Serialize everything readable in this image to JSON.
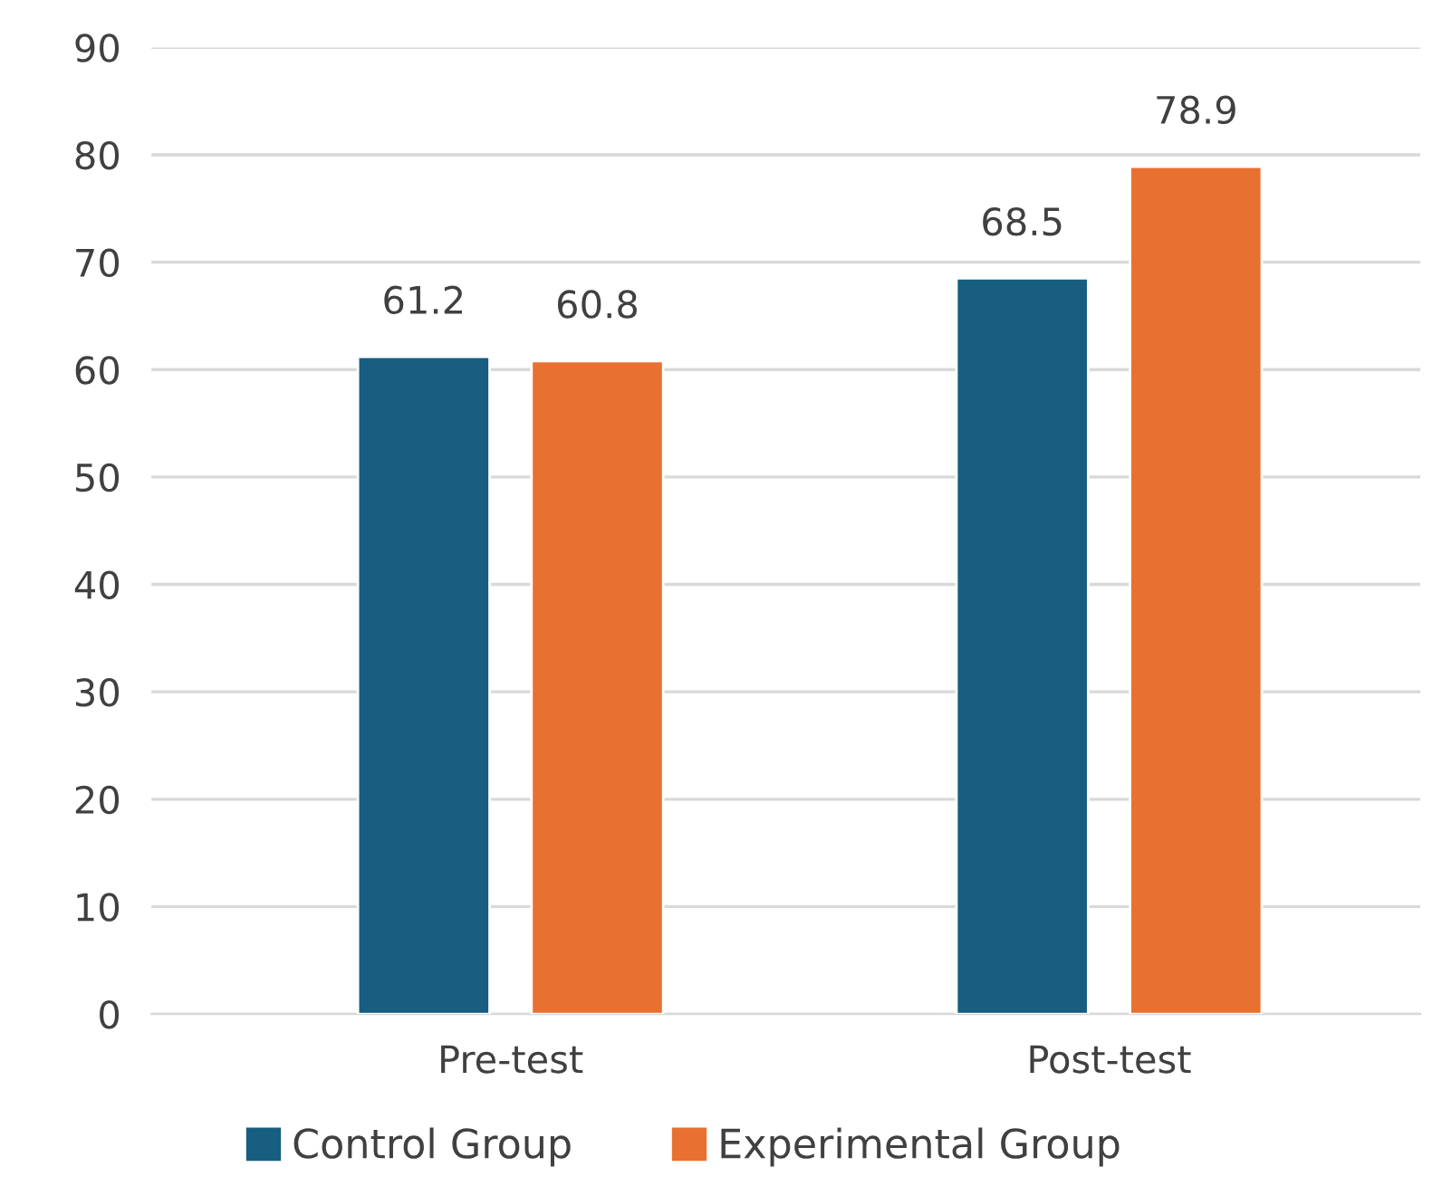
{
  "chart_data": {
    "type": "bar",
    "categories": [
      "Pre-test",
      "Post-test"
    ],
    "series": [
      {
        "name": "Control Group",
        "color": "#175e80",
        "values": [
          61.2,
          68.5
        ]
      },
      {
        "name": "Experimental Group",
        "color": "#e87131",
        "values": [
          60.8,
          78.9
        ]
      }
    ],
    "ylim": [
      0,
      90
    ],
    "yticks": [
      0,
      10,
      20,
      30,
      40,
      50,
      60,
      70,
      80,
      90
    ],
    "grid": "y",
    "legend": "bottom",
    "data_labels": true
  }
}
